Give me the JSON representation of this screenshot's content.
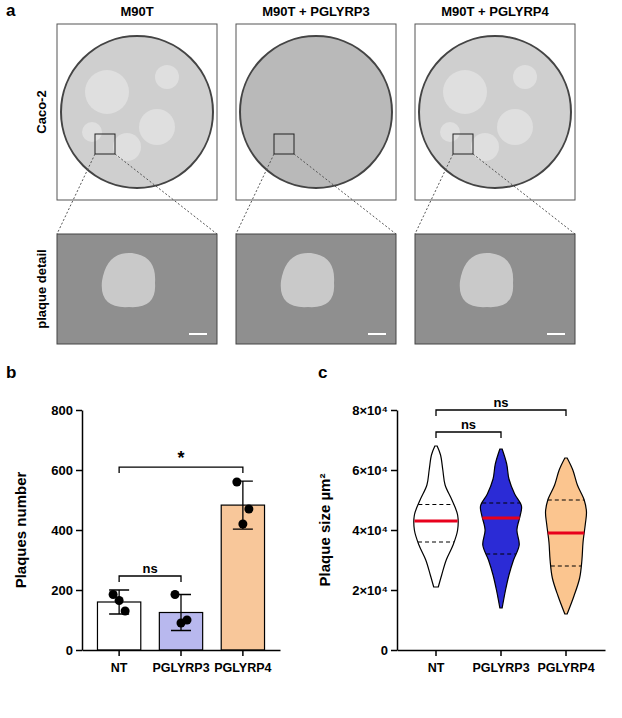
{
  "panel_a": {
    "label": "a",
    "columns": [
      "M90T",
      "M90T + PGLYRP3",
      "M90T + PGLYRP4"
    ],
    "rows": [
      "Caco-2",
      "plaque detail"
    ]
  },
  "chart_data": [
    {
      "label": "b",
      "type": "bar",
      "categories": [
        "NT",
        "PGLYRP3",
        "PGLYRP4"
      ],
      "values": [
        160,
        125,
        483
      ],
      "errors": [
        40,
        60,
        80
      ],
      "points": [
        [
          185,
          130,
          165
        ],
        [
          185,
          100,
          90
        ],
        [
          560,
          470,
          420
        ]
      ],
      "colors": [
        "#ffffff",
        "#b8b8ee",
        "#f8c79a"
      ],
      "y_label": "Plaques number",
      "ylim": [
        0,
        800
      ],
      "yticks": [
        0,
        200,
        400,
        600,
        800
      ],
      "comparisons": [
        {
          "from": 0,
          "to": 1,
          "label": "ns"
        },
        {
          "from": 0,
          "to": 2,
          "label": "*"
        }
      ]
    },
    {
      "label": "c",
      "type": "violin",
      "categories": [
        "NT",
        "PGLYRP3",
        "PGLYRP4"
      ],
      "violins": [
        {
          "median": 43000,
          "q1": 36000,
          "q3": 48500,
          "density_y": [
            21000,
            25000,
            30000,
            35000,
            40000,
            45000,
            50000,
            55000,
            60000,
            65000,
            68000
          ],
          "density": [
            0.1,
            0.25,
            0.45,
            0.75,
            0.95,
            0.95,
            0.7,
            0.4,
            0.3,
            0.2,
            0.05
          ]
        },
        {
          "median": 44000,
          "q1": 32000,
          "q3": 49000,
          "density_y": [
            14000,
            20000,
            25000,
            30000,
            35000,
            40000,
            45000,
            48000,
            52000,
            57000,
            62000,
            67000
          ],
          "density": [
            0.05,
            0.2,
            0.35,
            0.55,
            0.8,
            0.7,
            0.85,
            0.9,
            0.6,
            0.35,
            0.25,
            0.05
          ]
        },
        {
          "median": 39000,
          "q1": 28000,
          "q3": 50000,
          "density_y": [
            12000,
            18000,
            24000,
            30000,
            36000,
            42000,
            46000,
            50000,
            55000,
            60000,
            64000
          ],
          "density": [
            0.05,
            0.35,
            0.6,
            0.7,
            0.75,
            0.85,
            0.9,
            0.8,
            0.5,
            0.3,
            0.05
          ]
        }
      ],
      "colors": [
        "#ffffff",
        "#2b2bd6",
        "#fbc58f"
      ],
      "y_label": "Plaque size µm²",
      "ylim": [
        0,
        80000
      ],
      "yticks": [
        0,
        {
          "value": 20000,
          "label": "2×10⁴"
        },
        {
          "value": 40000,
          "label": "4×10⁴"
        },
        {
          "value": 60000,
          "label": "6×10⁴"
        },
        {
          "value": 80000,
          "label": "8×10⁴"
        }
      ],
      "comparisons": [
        {
          "from": 0,
          "to": 1,
          "label": "ns"
        },
        {
          "from": 0,
          "to": 2,
          "label": "ns"
        }
      ]
    }
  ]
}
